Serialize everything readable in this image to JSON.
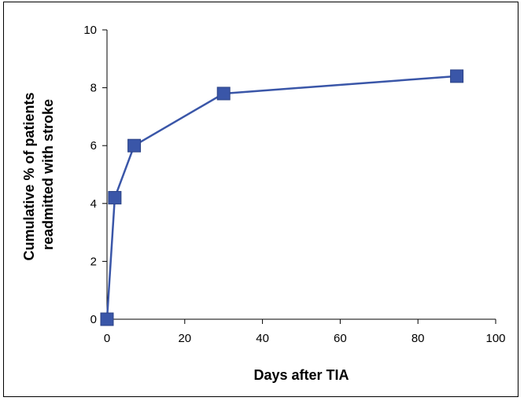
{
  "chart_data": {
    "type": "line",
    "title": "",
    "xlabel": "Days after TIA",
    "ylabel_lines": [
      "Cumulative % of patients",
      "readmitted with stroke"
    ],
    "xlim": [
      0,
      100
    ],
    "ylim": [
      0,
      10
    ],
    "x_ticks": [
      0,
      20,
      40,
      60,
      80,
      100
    ],
    "y_ticks": [
      0,
      2,
      4,
      6,
      8,
      10
    ],
    "grid": false,
    "legend": "none",
    "series": [
      {
        "color": "#3a56a8",
        "marker": "square",
        "x": [
          0,
          2,
          7,
          30,
          90
        ],
        "y": [
          0,
          4.2,
          6.0,
          7.8,
          8.4
        ]
      }
    ]
  }
}
